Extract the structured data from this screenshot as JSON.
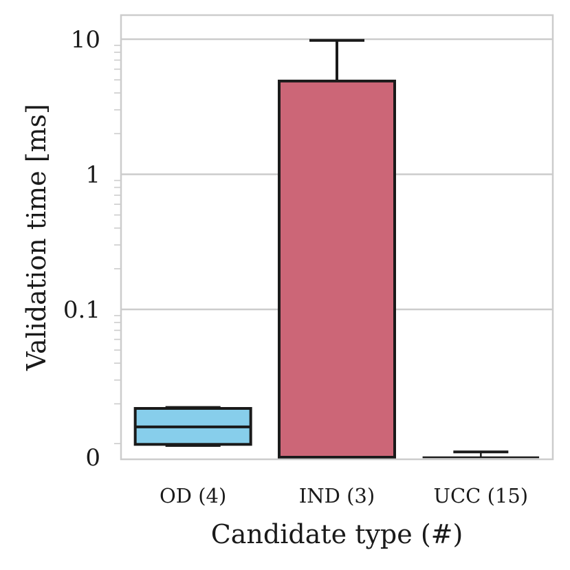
{
  "chart_data": {
    "type": "bar",
    "xlabel": "Candidate type (#)",
    "ylabel": "Validation time [ms]",
    "yscale": "symlog",
    "ylim": [
      0,
      15
    ],
    "yticks": [
      "0",
      "0.1",
      "1",
      "10"
    ],
    "grid": true,
    "categories": [
      "OD (4)",
      "IND (3)",
      "UCC (15)"
    ],
    "bars": [
      {
        "category": "OD (4)",
        "low": 0.0085,
        "high": 0.0185,
        "mid": 0.0135,
        "error_low": 0.0078,
        "error_high": 0.0188,
        "color": "#87ceeb"
      },
      {
        "category": "IND (3)",
        "low": 0,
        "high": 4.9,
        "error_high": 9.8,
        "color": "#cc6677"
      },
      {
        "category": "UCC (15)",
        "low": 0,
        "high": 0.0002,
        "error_high": 0.0035,
        "color": "#cc6677"
      }
    ]
  }
}
